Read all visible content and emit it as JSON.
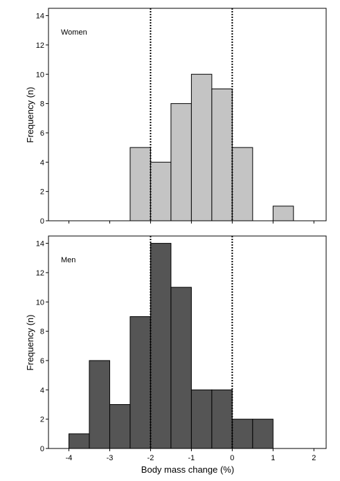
{
  "chart_data": [
    {
      "type": "bar",
      "panel_label": "Women",
      "ylabel": "Frequency (n)",
      "ylim": [
        0,
        14.5
      ],
      "yticks": [
        0,
        2,
        4,
        6,
        8,
        10,
        12,
        14
      ],
      "xlim": [
        -4.5,
        2.3
      ],
      "bin_width": 0.5,
      "bars": [
        {
          "x0": -2.5,
          "x1": -2.0,
          "value": 5
        },
        {
          "x0": -2.0,
          "x1": -1.5,
          "value": 4
        },
        {
          "x0": -1.5,
          "x1": -1.0,
          "value": 8
        },
        {
          "x0": -1.0,
          "x1": -0.5,
          "value": 10
        },
        {
          "x0": -0.5,
          "x1": 0.0,
          "value": 9
        },
        {
          "x0": 0.0,
          "x1": 0.5,
          "value": 5
        },
        {
          "x0": 1.0,
          "x1": 1.5,
          "value": 1
        }
      ],
      "bar_color": "#c4c4c4",
      "reference_lines": [
        -2,
        0
      ],
      "grid": false
    },
    {
      "type": "bar",
      "panel_label": "Men",
      "ylabel": "Frequency (n)",
      "xlabel": "Body mass change (%)",
      "ylim": [
        0,
        14.5
      ],
      "yticks": [
        0,
        2,
        4,
        6,
        8,
        10,
        12,
        14
      ],
      "xlim": [
        -4.5,
        2.3
      ],
      "xticks": [
        -4,
        -3,
        -2,
        -1,
        0,
        1,
        2
      ],
      "bin_width": 0.5,
      "bars": [
        {
          "x0": -4.0,
          "x1": -3.5,
          "value": 1
        },
        {
          "x0": -3.5,
          "x1": -3.0,
          "value": 6
        },
        {
          "x0": -3.0,
          "x1": -2.5,
          "value": 3
        },
        {
          "x0": -2.5,
          "x1": -2.0,
          "value": 9
        },
        {
          "x0": -2.0,
          "x1": -1.5,
          "value": 14
        },
        {
          "x0": -1.5,
          "x1": -1.0,
          "value": 11
        },
        {
          "x0": -1.0,
          "x1": -0.5,
          "value": 4
        },
        {
          "x0": -0.5,
          "x1": 0.0,
          "value": 4
        },
        {
          "x0": 0.0,
          "x1": 0.5,
          "value": 2
        },
        {
          "x0": 0.5,
          "x1": 1.0,
          "value": 2
        }
      ],
      "bar_color": "#555555",
      "reference_lines": [
        -2,
        0
      ],
      "grid": false
    }
  ]
}
